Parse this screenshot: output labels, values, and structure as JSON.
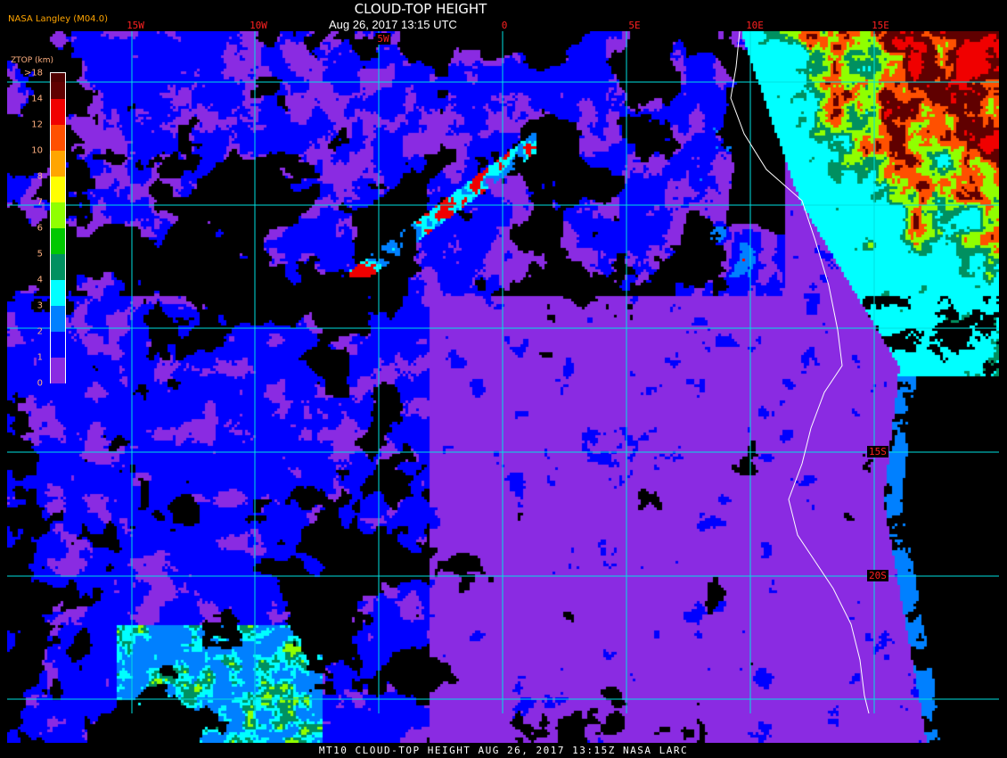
{
  "header": {
    "title": "CLOUD-TOP HEIGHT",
    "subtitle": "Aug 26, 2017 13:15 UTC",
    "brand": "NASA Langley (M04.0)"
  },
  "footer": {
    "caption": "MT10   CLOUD-TOP HEIGHT    AUG 26, 2017 13:15Z    NASA LARC"
  },
  "map": {
    "longitude_labels": [
      "15W",
      "10W",
      "5W",
      "0",
      "5E",
      "10E",
      "15E"
    ],
    "latitude_labels": [
      "15S",
      "20S"
    ],
    "grid_color": "#00e0e0",
    "coastline_color": "#ffffff",
    "background_color": "#000000"
  },
  "colorbar": {
    "title": "ZTOP (km)",
    "ticks": [
      ">18",
      "14",
      "12",
      "10",
      "8",
      "7",
      "6",
      "5",
      "4",
      "3",
      "2",
      "1",
      "0"
    ],
    "colors": [
      "#500000",
      "#600000",
      "#f00000",
      "#ff5000",
      "#ffa500",
      "#ffff00",
      "#90ff00",
      "#00c800",
      "#009060",
      "#00ffff",
      "#0080ff",
      "#0000ff",
      "#8a2be2"
    ]
  }
}
